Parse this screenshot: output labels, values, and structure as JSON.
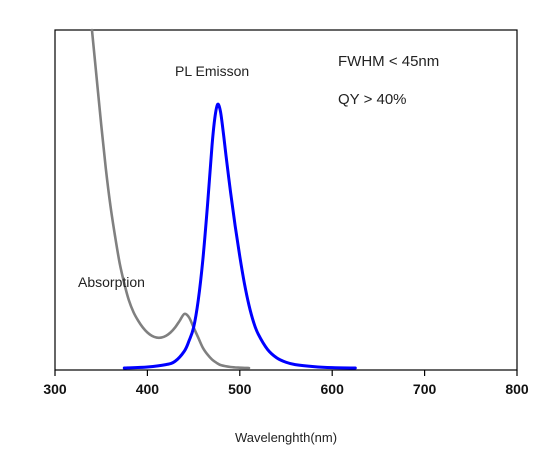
{
  "chart_data": {
    "type": "line",
    "title": "",
    "xlabel": "Wavelenghth(nm)",
    "ylabel": "",
    "xlim": [
      300,
      800
    ],
    "ylim": [
      0,
      1
    ],
    "x_ticks": [
      300,
      400,
      500,
      600,
      700,
      800
    ],
    "grid": false,
    "annotations": [
      "FWHM < 45nm",
      "QY > 40%"
    ],
    "series": [
      {
        "name": "Absorption",
        "color": "#808080",
        "x": [
          340,
          345,
          350,
          355,
          360,
          365,
          370,
          375,
          380,
          385,
          390,
          395,
          400,
          405,
          410,
          415,
          420,
          425,
          430,
          435,
          440,
          445,
          450,
          455,
          460,
          465,
          470,
          475,
          480,
          490,
          500,
          510
        ],
        "y": [
          1.0,
          0.86,
          0.72,
          0.59,
          0.48,
          0.39,
          0.31,
          0.25,
          0.2,
          0.165,
          0.14,
          0.12,
          0.105,
          0.095,
          0.09,
          0.09,
          0.095,
          0.105,
          0.12,
          0.14,
          0.16,
          0.15,
          0.12,
          0.09,
          0.06,
          0.04,
          0.025,
          0.015,
          0.008,
          0.003,
          0.001,
          0.0
        ]
      },
      {
        "name": "PL Emisson",
        "color": "#0000ff",
        "x": [
          375,
          400,
          420,
          430,
          440,
          445,
          450,
          455,
          460,
          465,
          470,
          473,
          476,
          479,
          482,
          485,
          490,
          495,
          500,
          505,
          510,
          515,
          520,
          530,
          540,
          550,
          560,
          580,
          600,
          625
        ],
        "y": [
          0.0,
          0.003,
          0.01,
          0.02,
          0.05,
          0.08,
          0.12,
          0.2,
          0.32,
          0.48,
          0.66,
          0.74,
          0.78,
          0.76,
          0.7,
          0.63,
          0.52,
          0.42,
          0.33,
          0.25,
          0.185,
          0.135,
          0.1,
          0.055,
          0.03,
          0.017,
          0.01,
          0.004,
          0.001,
          0.0
        ]
      }
    ]
  }
}
